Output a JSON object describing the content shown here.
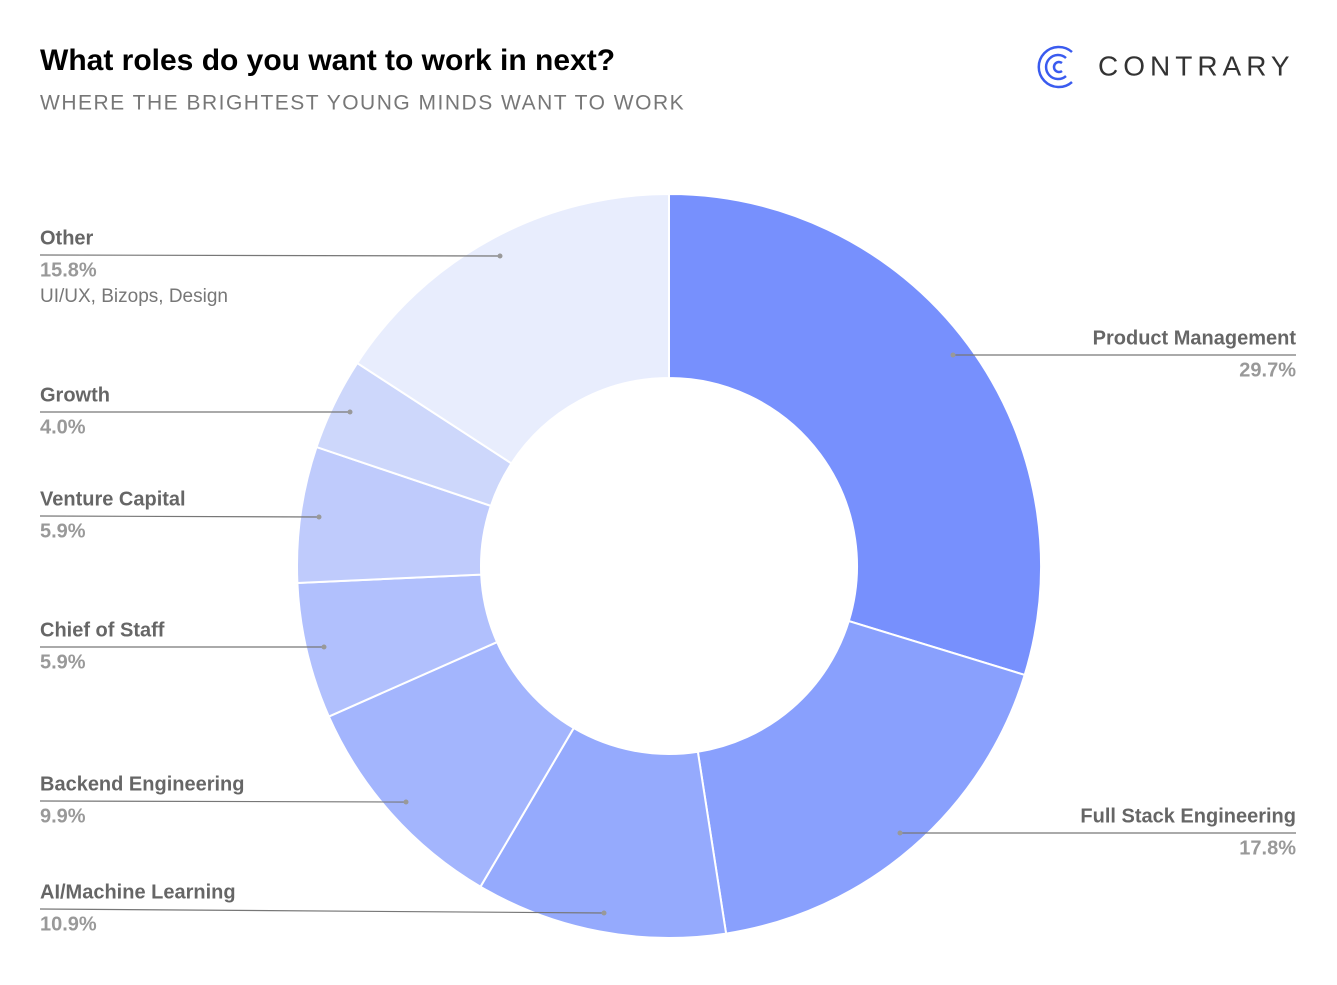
{
  "brand": "CONTRARY",
  "chart_data": {
    "type": "donut",
    "title": "What roles do you want to work in next?",
    "subtitle": "WHERE THE BRIGHTEST YOUNG MINDS WANT TO WORK",
    "categories": [
      "Product Management",
      "Full Stack Engineering",
      "AI/Machine Learning",
      "Backend Engineering",
      "Chief of Staff",
      "Venture Capital",
      "Growth",
      "Other"
    ],
    "values": [
      29.7,
      17.8,
      10.9,
      9.9,
      5.9,
      5.9,
      4.0,
      15.8
    ],
    "value_labels": [
      "29.7%",
      "17.8%",
      "10.9%",
      "9.9%",
      "5.9%",
      "5.9%",
      "4.0%",
      "15.8%"
    ],
    "colors": [
      "#7790fd",
      "#89a0fd",
      "#95aafd",
      "#a3b5fd",
      "#b1c0fd",
      "#bfcbfc",
      "#cdd7fb",
      "#e8edfd"
    ],
    "annotations": [
      {
        "category": "Other",
        "text": "UI/UX, Bizops, Design"
      }
    ]
  }
}
